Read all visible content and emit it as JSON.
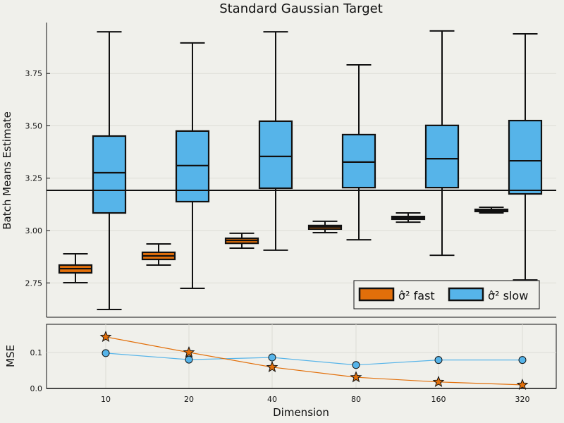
{
  "chart_data": [
    {
      "type": "box",
      "title": "Standard Gaussian Target",
      "xlabel": "",
      "ylabel": "Batch Means Estimate",
      "ylim": [
        2.586,
        3.993
      ],
      "yticks": [
        "2.75",
        "3.00",
        "3.25",
        "3.50",
        "3.75"
      ],
      "ytick_values": [
        2.75,
        3.0,
        3.25,
        3.5,
        3.75
      ],
      "categories": [
        "10",
        "20",
        "40",
        "80",
        "160",
        "320"
      ],
      "reference_line": 3.192,
      "grid": true,
      "legend_position": "bottom-right",
      "series": [
        {
          "name": "fast",
          "legend_label": "σ̂² fast",
          "color": "#e26f0a",
          "boxes": [
            {
              "min": 2.751,
              "q1": 2.798,
              "median": 2.818,
              "q3": 2.835,
              "max": 2.889
            },
            {
              "min": 2.835,
              "q1": 2.862,
              "median": 2.879,
              "q3": 2.896,
              "max": 2.936
            },
            {
              "min": 2.916,
              "q1": 2.939,
              "median": 2.953,
              "q3": 2.963,
              "max": 2.987
            },
            {
              "min": 2.99,
              "q1": 3.007,
              "median": 3.017,
              "q3": 3.024,
              "max": 3.044
            },
            {
              "min": 3.04,
              "q1": 3.054,
              "median": 3.061,
              "q3": 3.067,
              "max": 3.084
            },
            {
              "min": 3.084,
              "q1": 3.091,
              "median": 3.094,
              "q3": 3.101,
              "max": 3.111
            }
          ]
        },
        {
          "name": "slow",
          "legend_label": "σ̂² slow",
          "color": "#56b4e9",
          "boxes": [
            {
              "min": 2.623,
              "q1": 3.084,
              "median": 3.276,
              "q3": 3.451,
              "max": 3.949
            },
            {
              "min": 2.724,
              "q1": 3.138,
              "median": 3.31,
              "q3": 3.475,
              "max": 3.896
            },
            {
              "min": 2.906,
              "q1": 3.202,
              "median": 3.354,
              "q3": 3.522,
              "max": 3.949
            },
            {
              "min": 2.956,
              "q1": 3.205,
              "median": 3.327,
              "q3": 3.458,
              "max": 3.791
            },
            {
              "min": 2.882,
              "q1": 3.205,
              "median": 3.343,
              "q3": 3.502,
              "max": 3.953
            },
            {
              "min": 2.764,
              "q1": 3.175,
              "median": 3.333,
              "q3": 3.525,
              "max": 3.939
            }
          ]
        }
      ]
    },
    {
      "type": "line",
      "title": "",
      "xlabel": "Dimension",
      "ylabel": "MSE",
      "ylim": [
        0,
        0.178
      ],
      "yticks": [
        "0.0",
        "0.1"
      ],
      "ytick_values": [
        0,
        0.1
      ],
      "categories": [
        "10",
        "20",
        "40",
        "80",
        "160",
        "320"
      ],
      "grid": true,
      "series": [
        {
          "name": "fast",
          "marker": "star",
          "color": "#e26f0a",
          "values": [
            0.143,
            0.1,
            0.059,
            0.031,
            0.018,
            0.01
          ]
        },
        {
          "name": "slow",
          "marker": "circle",
          "color": "#56b4e9",
          "values": [
            0.098,
            0.08,
            0.086,
            0.065,
            0.079,
            0.079
          ]
        }
      ]
    }
  ]
}
